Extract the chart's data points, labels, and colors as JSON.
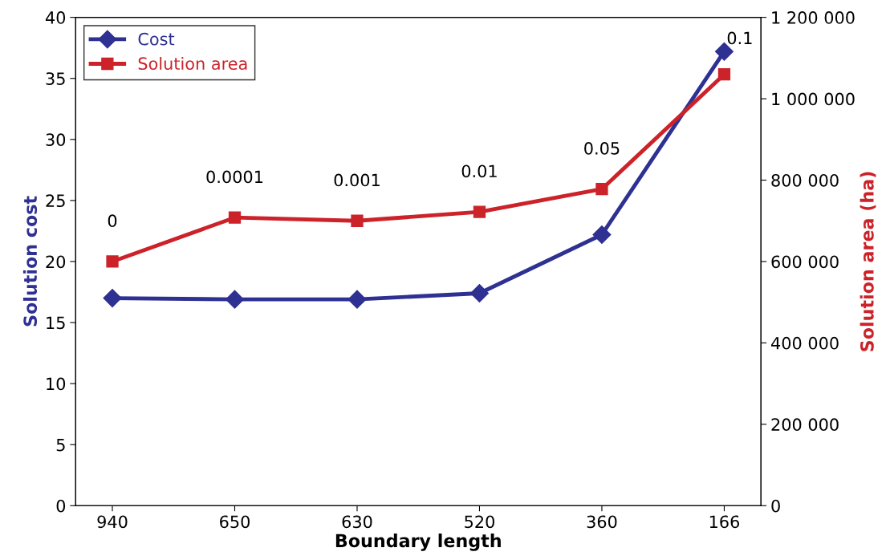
{
  "chart_data": {
    "type": "line",
    "xlabel": "Boundary length",
    "ylabel": "Solution cost",
    "y2label": "Solution area (ha)",
    "categories": [
      "940",
      "650",
      "630",
      "520",
      "360",
      "166"
    ],
    "series": [
      {
        "name": "Cost",
        "color": "#2e3192",
        "marker": "diamond",
        "values": [
          17.0,
          16.9,
          16.9,
          17.4,
          22.2,
          37.2
        ]
      },
      {
        "name": "Solution area",
        "color": "#cc2229",
        "marker": "square",
        "axis": "y2",
        "values": [
          600000,
          708000,
          700000,
          722000,
          778000,
          1060000
        ]
      }
    ],
    "ylim": [
      0,
      40
    ],
    "yticks": [
      0,
      5,
      10,
      15,
      20,
      25,
      30,
      35,
      40
    ],
    "y2lim": [
      0,
      1200000
    ],
    "y2ticks": [
      0,
      {
        "value": 200000,
        "label": "200 000"
      },
      {
        "value": 400000,
        "label": "400 000"
      },
      {
        "value": 600000,
        "label": "600 000"
      },
      {
        "value": 800000,
        "label": "800 000"
      },
      {
        "value": 1000000,
        "label": "1 000 000"
      },
      {
        "value": 1200000,
        "label": "1 200 000"
      }
    ],
    "annotations": [
      "0",
      "0.0001",
      "0.001",
      "0.01",
      "0.05",
      "0.1"
    ],
    "legend": "top left",
    "grid": false,
    "line_style": "solid"
  }
}
